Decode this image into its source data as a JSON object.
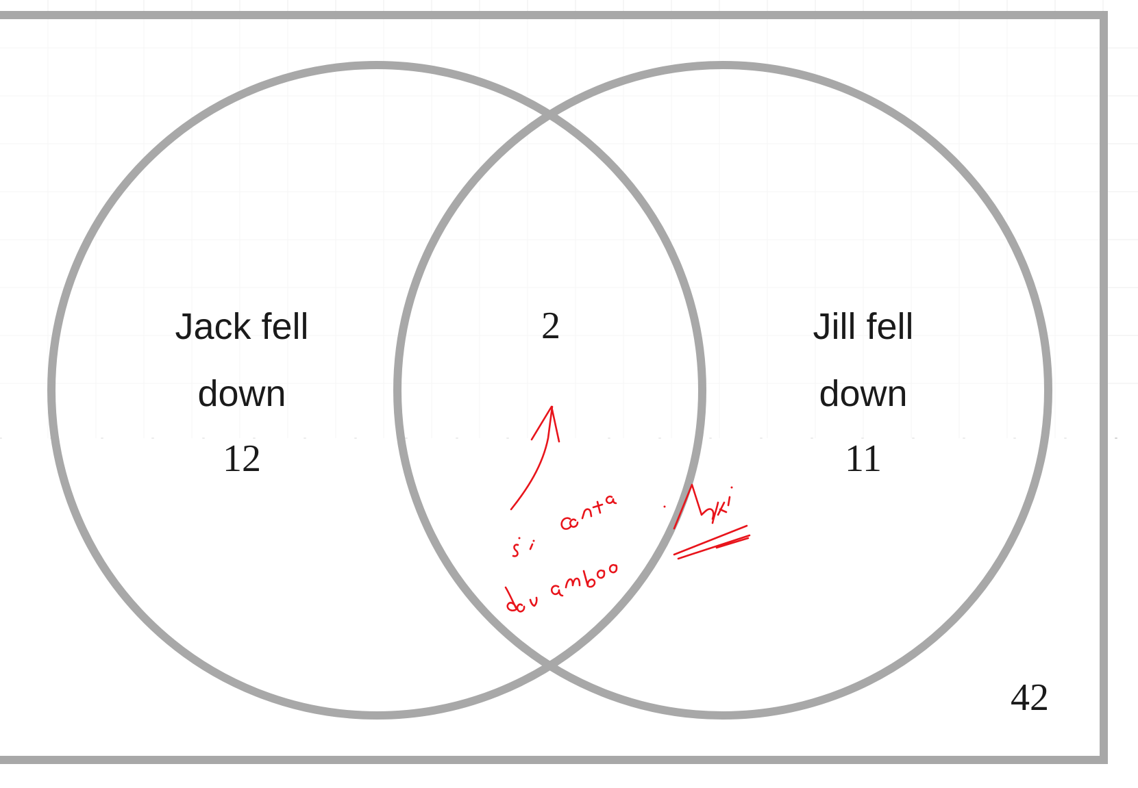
{
  "venn": {
    "left_set": {
      "label_line1": "Jack fell",
      "label_line2": "down",
      "count": "12"
    },
    "right_set": {
      "label_line1": "Jill fell",
      "label_line2": "down",
      "count": "11"
    },
    "intersection_count": "2",
    "outside_count": "42"
  },
  "annotation": {
    "text": "si conta due volte",
    "language": "it"
  },
  "colors": {
    "circle_stroke": "#a8a8a8",
    "frame_stroke": "#a8a8a8",
    "annotation_ink": "#e8141b",
    "text": "#1a1a1a",
    "grid": "#ececec"
  }
}
